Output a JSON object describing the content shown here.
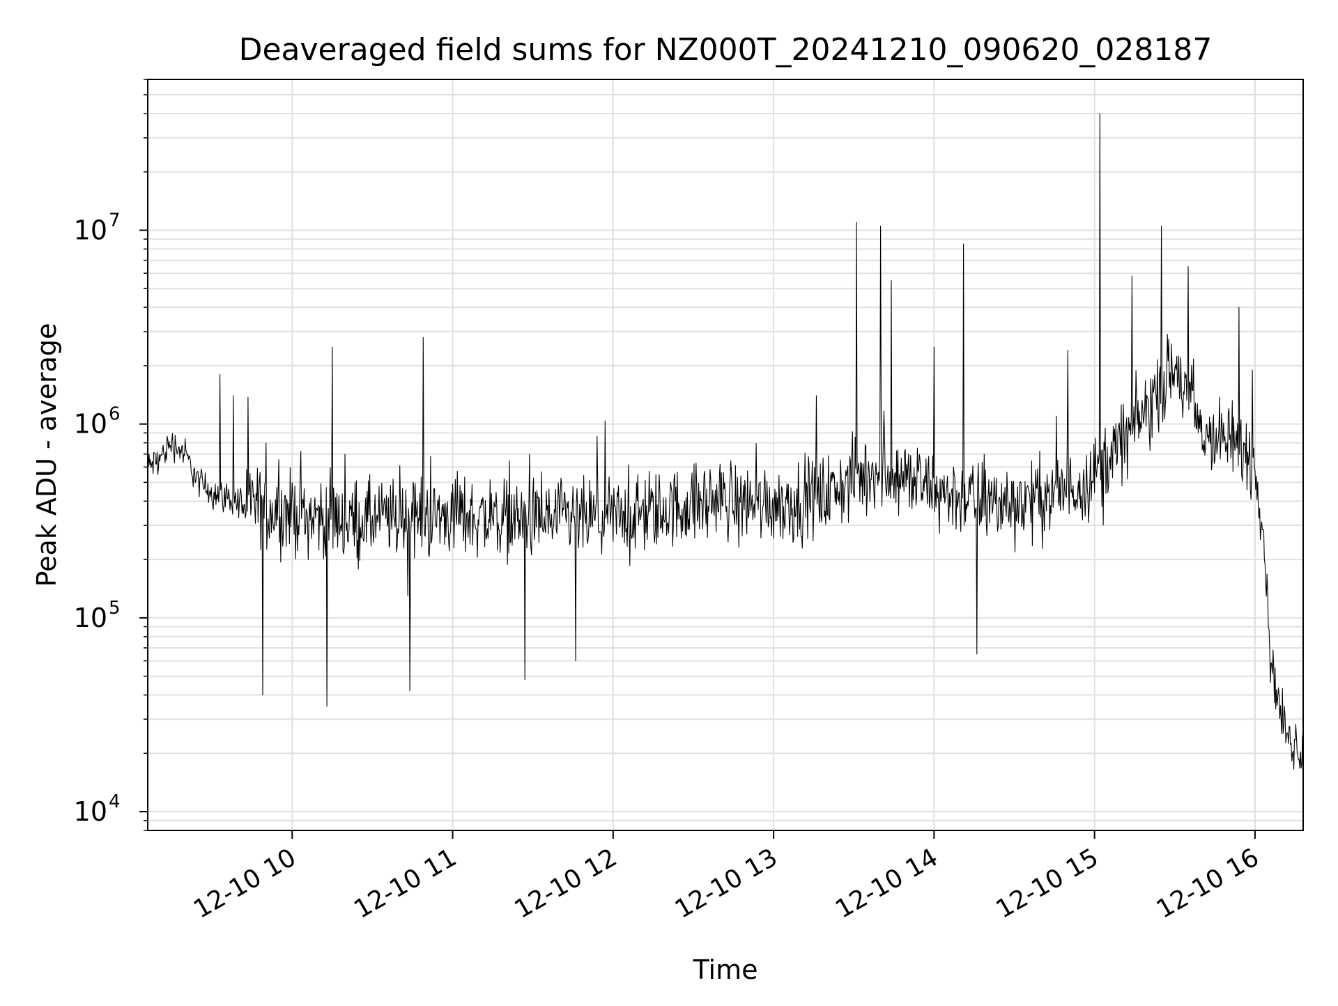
{
  "chart_data": {
    "type": "line",
    "title": "Deaveraged field sums for NZ000T_20241210_090620_028187",
    "xlabel": "Time",
    "ylabel": "Peak ADU - average",
    "yscale": "log",
    "ylim": [
      8000,
      60000000
    ],
    "xlim": [
      "2024-12-10 09:06",
      "2024-12-10 16:18"
    ],
    "grid": true,
    "x_ticks": [
      {
        "value": "2024-12-10 10:00",
        "label": "12-10 10"
      },
      {
        "value": "2024-12-10 11:00",
        "label": "12-10 11"
      },
      {
        "value": "2024-12-10 12:00",
        "label": "12-10 12"
      },
      {
        "value": "2024-12-10 13:00",
        "label": "12-10 13"
      },
      {
        "value": "2024-12-10 14:00",
        "label": "12-10 14"
      },
      {
        "value": "2024-12-10 15:00",
        "label": "12-10 15"
      },
      {
        "value": "2024-12-10 16:00",
        "label": "12-10 16"
      }
    ],
    "y_ticks": [
      {
        "value": 10000,
        "base": "10",
        "exp": "4"
      },
      {
        "value": 100000,
        "base": "10",
        "exp": "5"
      },
      {
        "value": 1000000,
        "base": "10",
        "exp": "6"
      },
      {
        "value": 10000000,
        "base": "10",
        "exp": "7"
      }
    ],
    "line_color": "#000000",
    "grid_color": "#e0e0e0",
    "series": [
      {
        "x": [
          "2024-12-10 09:06",
          "2024-12-10 09:10",
          "2024-12-10 09:15",
          "2024-12-10 09:20",
          "2024-12-10 09:25",
          "2024-12-10 09:30",
          "2024-12-10 09:35",
          "2024-12-10 09:40",
          "2024-12-10 09:45",
          "2024-12-10 09:50",
          "2024-12-10 09:55",
          "2024-12-10 10:00",
          "2024-12-10 10:10",
          "2024-12-10 10:20",
          "2024-12-10 10:30",
          "2024-12-10 10:40",
          "2024-12-10 10:50",
          "2024-12-10 11:00",
          "2024-12-10 11:10",
          "2024-12-10 11:20",
          "2024-12-10 11:30",
          "2024-12-10 11:40",
          "2024-12-10 11:50",
          "2024-12-10 12:00",
          "2024-12-10 12:10",
          "2024-12-10 12:20",
          "2024-12-10 12:30",
          "2024-12-10 12:40",
          "2024-12-10 12:50",
          "2024-12-10 13:00",
          "2024-12-10 13:10",
          "2024-12-10 13:20",
          "2024-12-10 13:30",
          "2024-12-10 13:40",
          "2024-12-10 13:50",
          "2024-12-10 14:00",
          "2024-12-10 14:10",
          "2024-12-10 14:20",
          "2024-12-10 14:30",
          "2024-12-10 14:40",
          "2024-12-10 14:50",
          "2024-12-10 15:00",
          "2024-12-10 15:10",
          "2024-12-10 15:20",
          "2024-12-10 15:25",
          "2024-12-10 15:30",
          "2024-12-10 15:35",
          "2024-12-10 15:40",
          "2024-12-10 15:45",
          "2024-12-10 15:50",
          "2024-12-10 15:55",
          "2024-12-10 16:00",
          "2024-12-10 16:03",
          "2024-12-10 16:06",
          "2024-12-10 16:09",
          "2024-12-10 16:12",
          "2024-12-10 16:15",
          "2024-12-10 16:18"
        ],
        "y": [
          600000,
          650000,
          800000,
          700000,
          500000,
          450000,
          420000,
          400000,
          380000,
          370000,
          360000,
          350000,
          330000,
          320000,
          320000,
          330000,
          330000,
          340000,
          330000,
          330000,
          320000,
          320000,
          320000,
          330000,
          340000,
          360000,
          390000,
          410000,
          400000,
          390000,
          400000,
          430000,
          520000,
          600000,
          520000,
          450000,
          420000,
          400000,
          390000,
          420000,
          460000,
          550000,
          800000,
          1200000,
          1600000,
          1900000,
          1400000,
          900000,
          850000,
          800000,
          750000,
          600000,
          300000,
          60000,
          35000,
          25000,
          22000,
          20000
        ]
      }
    ],
    "spikes": [
      {
        "x": "2024-12-10 09:33",
        "y": 1800000
      },
      {
        "x": "2024-12-10 09:38",
        "y": 1400000
      },
      {
        "x": "2024-12-10 09:49",
        "y": 40000
      },
      {
        "x": "2024-12-10 10:13",
        "y": 35000
      },
      {
        "x": "2024-12-10 10:15",
        "y": 2500000
      },
      {
        "x": "2024-12-10 10:44",
        "y": 42000
      },
      {
        "x": "2024-12-10 10:49",
        "y": 2800000
      },
      {
        "x": "2024-12-10 11:27",
        "y": 48000
      },
      {
        "x": "2024-12-10 11:46",
        "y": 60000
      },
      {
        "x": "2024-12-10 13:16",
        "y": 1400000
      },
      {
        "x": "2024-12-10 13:31",
        "y": 11000000
      },
      {
        "x": "2024-12-10 13:40",
        "y": 10500000
      },
      {
        "x": "2024-12-10 13:44",
        "y": 5500000
      },
      {
        "x": "2024-12-10 14:00",
        "y": 2500000
      },
      {
        "x": "2024-12-10 14:11",
        "y": 8500000
      },
      {
        "x": "2024-12-10 14:16",
        "y": 65000
      },
      {
        "x": "2024-12-10 14:50",
        "y": 2400000
      },
      {
        "x": "2024-12-10 15:02",
        "y": 40000000
      },
      {
        "x": "2024-12-10 15:14",
        "y": 5800000
      },
      {
        "x": "2024-12-10 15:25",
        "y": 8500000
      },
      {
        "x": "2024-12-10 15:25",
        "y": 10500000
      },
      {
        "x": "2024-12-10 15:35",
        "y": 6500000
      },
      {
        "x": "2024-12-10 15:54",
        "y": 4000000
      },
      {
        "x": "2024-12-10 15:59",
        "y": 1900000
      }
    ]
  }
}
